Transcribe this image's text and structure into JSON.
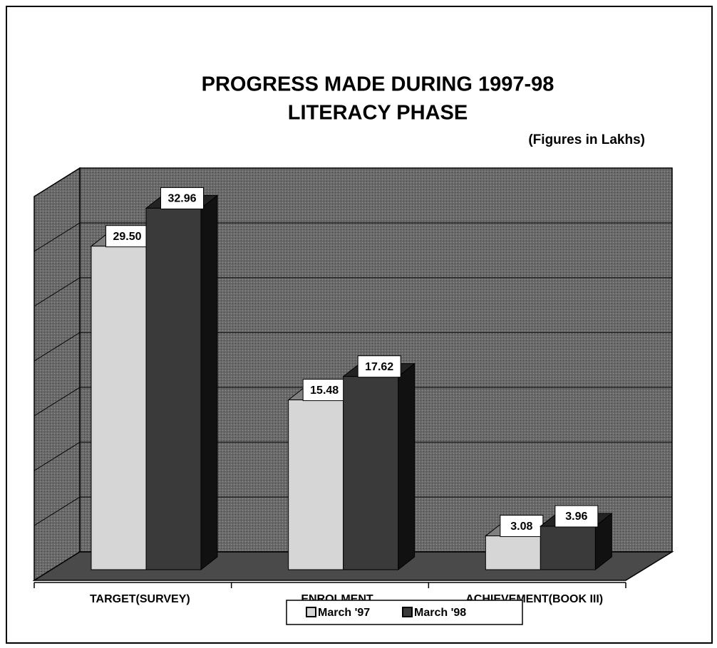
{
  "chart_data": {
    "type": "bar3d",
    "title": "PROGRESS MADE DURING 1997-98",
    "subtitle": "LITERACY PHASE",
    "note": "(Figures in Lakhs)",
    "categories": [
      "TARGET(SURVEY)",
      "ENROLMENT",
      "ACHIEVEMENT(BOOK III)"
    ],
    "series": [
      {
        "name": "March '97",
        "color": "#d6d6d6",
        "values": [
          29.5,
          15.48,
          3.08
        ],
        "value_labels": [
          "29.50",
          "15.48",
          "3.08"
        ]
      },
      {
        "name": "March '98",
        "color": "#3a3a3a",
        "values": [
          32.96,
          17.62,
          3.96
        ],
        "value_labels": [
          "32.96",
          "17.62",
          "3.96"
        ]
      }
    ],
    "ylim": [
      0,
      35
    ],
    "yticks": [
      0,
      5,
      10,
      15,
      20,
      25,
      30,
      35
    ],
    "grid": true,
    "legend": "bottom"
  }
}
